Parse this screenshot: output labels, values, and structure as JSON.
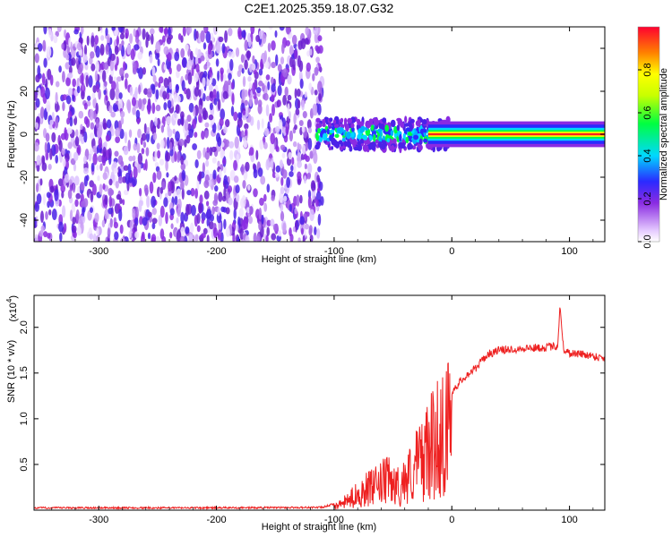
{
  "title": "C2E1.2025.359.18.07.G32",
  "chart_data": [
    {
      "type": "heatmap",
      "xlabel": "Height of straight line (km)",
      "ylabel": "Frequency (Hz)",
      "xlim": [
        -355,
        130
      ],
      "ylim": [
        -50,
        50
      ],
      "xticks": [
        -300,
        -200,
        -100,
        0,
        100
      ],
      "xtick_labels": [
        "-300",
        "-200",
        "-100",
        "0",
        "100"
      ],
      "yticks": [
        -40,
        -20,
        0,
        20,
        40
      ],
      "ytick_labels": [
        "-40",
        "-20",
        "0",
        "20",
        "40"
      ],
      "colorbar": {
        "label": "Normalized spectral amplitude",
        "range": [
          0,
          1
        ],
        "ticks": [
          0.0,
          0.2,
          0.4,
          0.6,
          0.8
        ],
        "tick_labels": [
          "0.0",
          "0.2",
          "0.4",
          "0.6",
          "0.8"
        ]
      },
      "description_regions": [
        {
          "x_range": [
            -355,
            -110
          ],
          "freq_range": [
            -50,
            50
          ],
          "amplitude": "low-to-moderate scattered noise"
        },
        {
          "x_range": [
            -110,
            0
          ],
          "freq_range": [
            -8,
            8
          ],
          "amplitude": "moderate, concentrated near 0 Hz"
        },
        {
          "x_range": [
            0,
            130
          ],
          "freq_range": [
            -3,
            3
          ],
          "amplitude": "peak at 0 Hz"
        }
      ]
    },
    {
      "type": "line",
      "xlabel": "Height of straight line (km)",
      "ylabel": "SNR (10 * v/v)",
      "multiplier_label": "(x10",
      "multiplier_exponent": "4",
      "xlim": [
        -355,
        130
      ],
      "ylim": [
        0,
        23500
      ],
      "xticks": [
        -300,
        -200,
        -100,
        0,
        100
      ],
      "xtick_labels": [
        "-300",
        "-200",
        "-100",
        "0",
        "100"
      ],
      "yticks": [
        5000,
        10000,
        15000,
        20000
      ],
      "ytick_labels": [
        "0.5",
        "1.0",
        "1.5",
        "2.0"
      ],
      "series": [
        {
          "name": "SNR",
          "color": "#ee2020",
          "x": [
            -355,
            -300,
            -200,
            -110,
            -95,
            -85,
            -75,
            -65,
            -55,
            -45,
            -35,
            -25,
            -15,
            -10,
            -5,
            0,
            10,
            20,
            30,
            40,
            60,
            80,
            90,
            92,
            95,
            100,
            115,
            130
          ],
          "y": [
            150,
            150,
            150,
            200,
            800,
            1800,
            3000,
            3500,
            4500,
            3500,
            5500,
            8000,
            10000,
            11500,
            12000,
            13000,
            14500,
            15500,
            17000,
            17500,
            17700,
            17800,
            18000,
            22500,
            17500,
            17200,
            17000,
            16600
          ]
        }
      ]
    }
  ]
}
